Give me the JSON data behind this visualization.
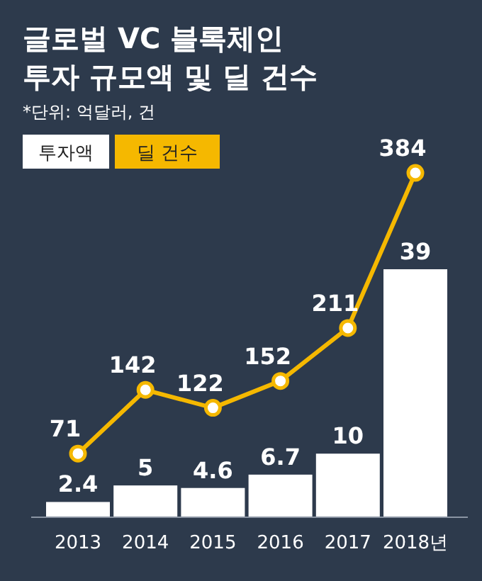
{
  "chart_data": {
    "type": "bar",
    "title": "글로벌 VC 블록체인\n투자 규모액 및 딜 건수",
    "subtitle": "*단위: 억달러, 건",
    "categories": [
      "2013",
      "2014",
      "2015",
      "2016",
      "2017",
      "2018년"
    ],
    "series": [
      {
        "name": "투자액",
        "color": "#ffffff",
        "values": [
          2.4,
          5,
          4.6,
          6.7,
          10,
          39
        ]
      },
      {
        "name": "딜 건수",
        "type": "line",
        "axis": "y2",
        "color": "#f5b800",
        "values": [
          71,
          142,
          122,
          152,
          211,
          384
        ]
      }
    ],
    "data_labels": true,
    "legend": "top left",
    "marker": "circle",
    "line_style": "solid"
  }
}
